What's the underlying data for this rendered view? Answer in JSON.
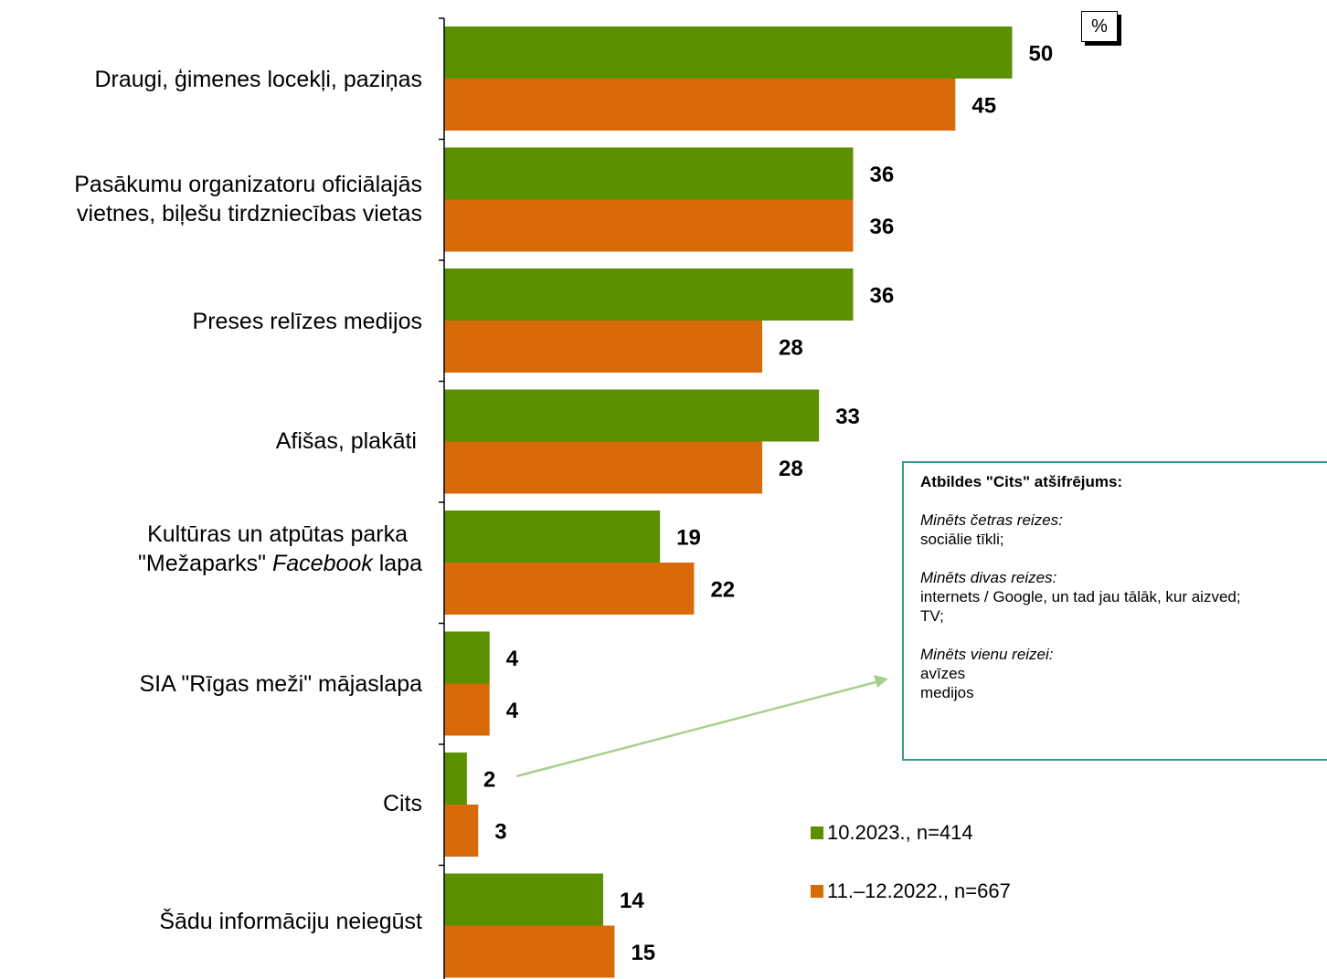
{
  "chart_data": {
    "type": "bar",
    "orientation": "horizontal",
    "unit": "%",
    "categories": [
      "Draugi, ģimenes locekļi, paziņas",
      "Pasākumu organizatoru oficiālajās vietnes, biļešu tirdzniecības vietas",
      "Preses relīzes medijos",
      "Afišas, plakāti",
      "Kultūras un atpūtas parka \"Mežaparks\" Facebook lapa",
      "SIA \"Rīgas meži\" mājaslapa",
      "Cits",
      "Šādu informāciju neiegūst"
    ],
    "series": [
      {
        "name": "10.2023., n=414",
        "color": "#5b9000",
        "values": [
          50,
          36,
          36,
          33,
          19,
          4,
          2,
          14
        ]
      },
      {
        "name": "11.–12.2022., n=667",
        "color": "#d96a0a",
        "values": [
          45,
          36,
          28,
          28,
          22,
          4,
          3,
          15
        ]
      }
    ],
    "xlim": [
      0,
      55
    ],
    "grid": false,
    "legend_position": "bottom-right"
  },
  "labels": {
    "cat0": "Draugi, ģimenes locekļi, paziņas",
    "cat1_line1": "Pasākumu organizatoru oficiālajās",
    "cat1_line2": "vietnes, biļešu tirdzniecības vietas",
    "cat2": "Preses relīzes medijos",
    "cat3": "Afišas, plakāti",
    "cat4_line1": "Kultūras un atpūtas parka",
    "cat4_line2_a": "\"Mežaparks\" ",
    "cat4_line2_b": "Facebook",
    "cat4_line2_c": " lapa",
    "cat5": "SIA \"Rīgas meži\" mājaslapa",
    "cat6": "Cits",
    "cat7": "Šādu informāciju neiegūst"
  },
  "percent_badge": "%",
  "note": {
    "title": "Atbildes \"Cits\" atšifrējums:",
    "group1_head": "Minēts četras reizes:",
    "group1_items": [
      "sociālie tīkli;"
    ],
    "group2_head": "Minēts divas reizes:",
    "group2_items": [
      "internets / Google, un tad jau tālāk, kur aizved;",
      "TV;"
    ],
    "group3_head": "Minēts vienu reizei:",
    "group3_items": [
      "avīzes",
      "medijos"
    ]
  },
  "legend": {
    "item1": "10.2023., n=414",
    "item2": "11.–12.2022., n=667"
  },
  "colors": {
    "series1": "#5b9000",
    "series2": "#d96a0a",
    "arrow": "#a8d08d",
    "note_border": "#3a9a8a"
  }
}
